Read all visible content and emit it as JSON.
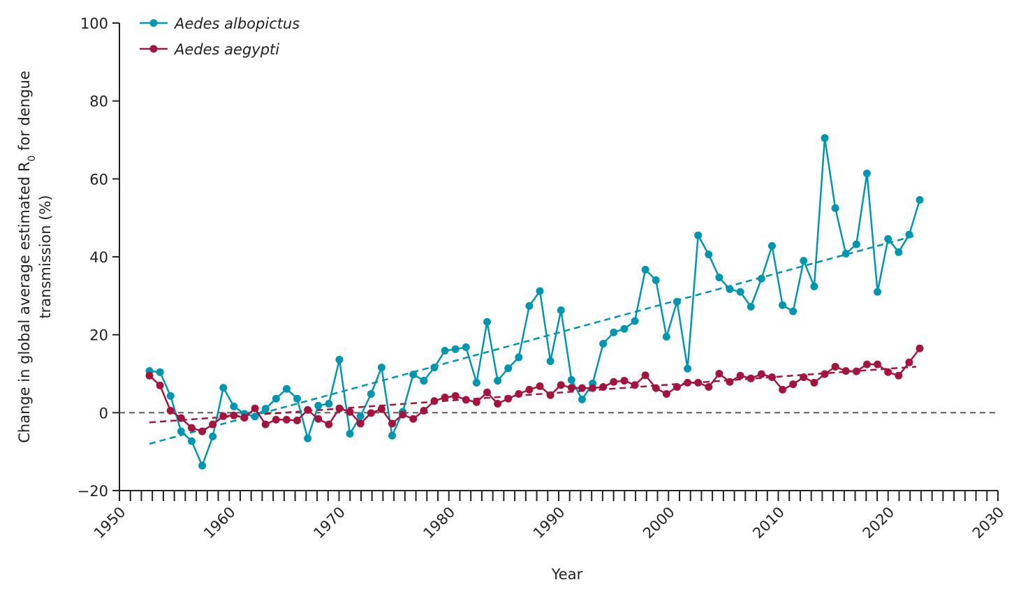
{
  "chart_data": {
    "type": "line",
    "title": "",
    "xlabel": "Year",
    "ylabel_parts": [
      "Change in global average estimated R",
      "0",
      " for dengue",
      "transmission (%)"
    ],
    "xlim": [
      1950,
      2030
    ],
    "ylim": [
      -20,
      100
    ],
    "x_ticks": [
      1950,
      1960,
      1970,
      1980,
      1990,
      2000,
      2010,
      2020,
      2030
    ],
    "y_ticks": [
      -20,
      0,
      20,
      40,
      60,
      80,
      100
    ],
    "grid": false,
    "legend_placement": "top-left",
    "reference_line": {
      "y": 0,
      "style": "dashed",
      "color": "#555555"
    },
    "years": [
      1950,
      1951,
      1952,
      1953,
      1954,
      1955,
      1956,
      1957,
      1958,
      1959,
      1960,
      1961,
      1962,
      1963,
      1964,
      1965,
      1966,
      1967,
      1968,
      1969,
      1970,
      1971,
      1972,
      1973,
      1974,
      1975,
      1976,
      1977,
      1978,
      1979,
      1980,
      1981,
      1982,
      1983,
      1984,
      1985,
      1986,
      1987,
      1988,
      1989,
      1990,
      1991,
      1992,
      1993,
      1994,
      1995,
      1996,
      1997,
      1998,
      1999,
      2000,
      2001,
      2002,
      2003,
      2004,
      2005,
      2006,
      2007,
      2008,
      2009,
      2010,
      2011,
      2012,
      2013,
      2014,
      2015,
      2016,
      2017,
      2018,
      2019,
      2020,
      2021,
      2022,
      2023
    ],
    "series": [
      {
        "name": "Aedes albopictus",
        "color": "#0096b0",
        "values": [
          10.7,
          10.4,
          4.3,
          -4.8,
          -7.3,
          -13.6,
          -6.1,
          6.4,
          1.6,
          -0.3,
          -1.0,
          1.0,
          3.6,
          6.1,
          3.6,
          -6.6,
          1.8,
          2.3,
          13.6,
          -5.4,
          -0.9,
          4.8,
          11.6,
          -5.9,
          0.2,
          9.8,
          8.2,
          11.6,
          15.9,
          16.3,
          16.8,
          7.7,
          23.3,
          8.2,
          11.4,
          14.2,
          27.4,
          31.2,
          13.2,
          26.3,
          8.4,
          3.4,
          7.5,
          17.7,
          20.6,
          21.5,
          23.5,
          36.7,
          34.0,
          19.5,
          28.5,
          11.3,
          45.5,
          40.6,
          34.7,
          31.7,
          31.0,
          27.2,
          34.4,
          42.8,
          27.6,
          26.0,
          39.0,
          32.4,
          70.5,
          52.5,
          40.8,
          43.2,
          61.4,
          31.0,
          44.6,
          41.2,
          45.7,
          54.6
        ],
        "trend": {
          "start": -8.0,
          "end": 45.5,
          "style": "dashed"
        }
      },
      {
        "name": "Aedes aegypti",
        "color": "#a3153f",
        "values": [
          9.5,
          7.0,
          0.5,
          -1.4,
          -3.9,
          -4.8,
          -3.0,
          -0.9,
          -0.7,
          -1.3,
          1.1,
          -3.0,
          -1.8,
          -1.8,
          -2.0,
          0.7,
          -1.6,
          -3.0,
          1.1,
          0.2,
          -2.8,
          -0.1,
          0.9,
          -2.8,
          -0.5,
          -1.6,
          0.5,
          3.0,
          3.9,
          4.3,
          3.3,
          2.7,
          5.2,
          2.3,
          3.6,
          4.8,
          5.9,
          6.8,
          4.5,
          7.1,
          6.4,
          6.3,
          6.3,
          6.6,
          7.9,
          8.2,
          7.1,
          9.6,
          6.3,
          4.8,
          6.6,
          7.7,
          7.7,
          6.6,
          10.0,
          7.9,
          9.5,
          8.8,
          9.9,
          9.1,
          5.9,
          7.3,
          9.1,
          7.7,
          9.9,
          11.8,
          10.7,
          10.6,
          12.4,
          12.4,
          10.4,
          9.5,
          12.9,
          16.5
        ],
        "trend": {
          "start": -2.5,
          "end": 11.8,
          "style": "dashed"
        }
      }
    ]
  }
}
